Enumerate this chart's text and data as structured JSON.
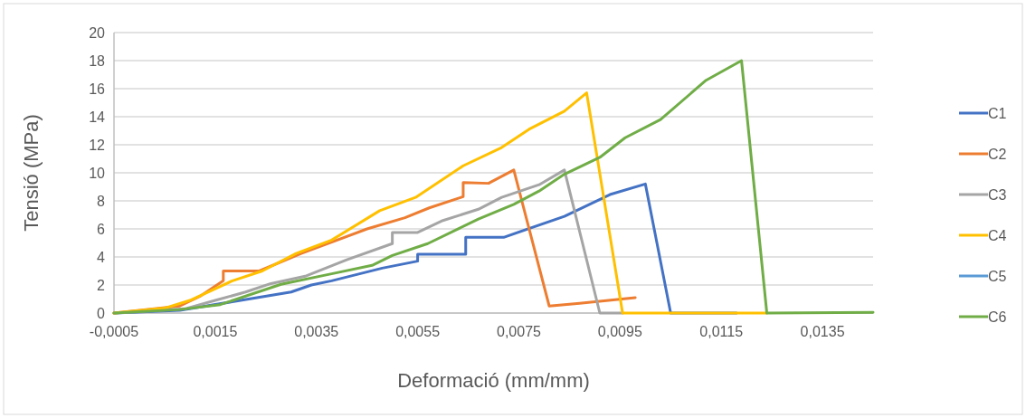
{
  "chart_data": {
    "type": "line",
    "xlabel": "Deformació (mm/mm)",
    "ylabel": "Tensió (MPa)",
    "xlim": [
      -0.0005,
      0.0145
    ],
    "xticks": [
      {
        "value": -0.0005,
        "label": "-0,0005"
      },
      {
        "value": 0.0015,
        "label": "0,0015"
      },
      {
        "value": 0.0035,
        "label": "0,0035"
      },
      {
        "value": 0.0055,
        "label": "0,0055"
      },
      {
        "value": 0.0075,
        "label": "0,0075"
      },
      {
        "value": 0.0095,
        "label": "0,0095"
      },
      {
        "value": 0.0115,
        "label": "0,0115"
      },
      {
        "value": 0.0135,
        "label": "0,0135"
      }
    ],
    "ylim": [
      0,
      20
    ],
    "yticks": [
      0,
      2,
      4,
      6,
      8,
      10,
      12,
      14,
      16,
      18,
      20
    ],
    "grid": "y",
    "legend": "right",
    "marker": "none",
    "line_style": "solid",
    "series": [
      {
        "name": "C1",
        "color": "#4472c4",
        "x": [
          -0.0005,
          0.0008,
          0.002,
          0.003,
          0.0034,
          0.0038,
          0.0048,
          0.0055,
          0.0055,
          0.00645,
          0.00645,
          0.0072,
          0.0084,
          0.0093,
          0.01,
          0.0105,
          0.0118
        ],
        "values": [
          0,
          0.2,
          0.9,
          1.5,
          2.0,
          2.3,
          3.2,
          3.7,
          4.2,
          4.2,
          5.4,
          5.4,
          6.9,
          8.45,
          9.2,
          0,
          0
        ]
      },
      {
        "name": "C2",
        "color": "#ed7d31",
        "x": [
          -0.0005,
          0.0008,
          0.0012,
          0.00166,
          0.00166,
          0.00237,
          0.0032,
          0.0045,
          0.00525,
          0.00573,
          0.0064,
          0.0064,
          0.0069,
          0.0074,
          0.0081,
          0.0087,
          0.0098
        ],
        "values": [
          0,
          0.5,
          1.2,
          2.3,
          3.0,
          3.0,
          4.25,
          6.0,
          6.8,
          7.5,
          8.3,
          9.3,
          9.25,
          10.2,
          0.5,
          0.7,
          1.1
        ]
      },
      {
        "name": "C3",
        "color": "#a5a5a5",
        "x": [
          -0.0005,
          0.0009,
          0.0015,
          0.0021,
          0.0026,
          0.0033,
          0.0041,
          0.005,
          0.005,
          0.0055,
          0.006,
          0.0067,
          0.00716,
          0.0079,
          0.0084,
          0.0091,
          0.00955
        ],
        "values": [
          0,
          0.3,
          0.9,
          1.5,
          2.1,
          2.65,
          3.8,
          4.95,
          5.75,
          5.75,
          6.6,
          7.4,
          8.25,
          9.15,
          10.2,
          0,
          0
        ]
      },
      {
        "name": "C4",
        "color": "#ffc000",
        "x": [
          -0.0005,
          0.0005,
          0.001,
          0.00184,
          0.00243,
          0.0031,
          0.0038,
          0.00475,
          0.00546,
          0.0064,
          0.00716,
          0.0077,
          0.0084,
          0.00884,
          0.00955,
          0.0124
        ],
        "values": [
          0,
          0.35,
          0.9,
          2.3,
          3.0,
          4.25,
          5.2,
          7.3,
          8.25,
          10.5,
          11.8,
          13.1,
          14.4,
          15.7,
          0,
          0
        ]
      },
      {
        "name": "C5",
        "color": "#5b9bd5"
      },
      {
        "name": "C6",
        "color": "#70ad47",
        "x": [
          -0.0005,
          0.0008,
          0.0016,
          0.0028,
          0.0038,
          0.0046,
          0.005,
          0.0057,
          0.0067,
          0.0074,
          0.0079,
          0.0084,
          0.0091,
          0.0096,
          0.0103,
          0.0112,
          0.0119,
          0.0124,
          0.0145
        ],
        "values": [
          0,
          0.25,
          0.6,
          2.05,
          2.8,
          3.4,
          4.1,
          4.95,
          6.7,
          7.75,
          8.7,
          9.9,
          11.1,
          12.5,
          13.8,
          16.6,
          18.0,
          0,
          0.05
        ]
      }
    ]
  }
}
